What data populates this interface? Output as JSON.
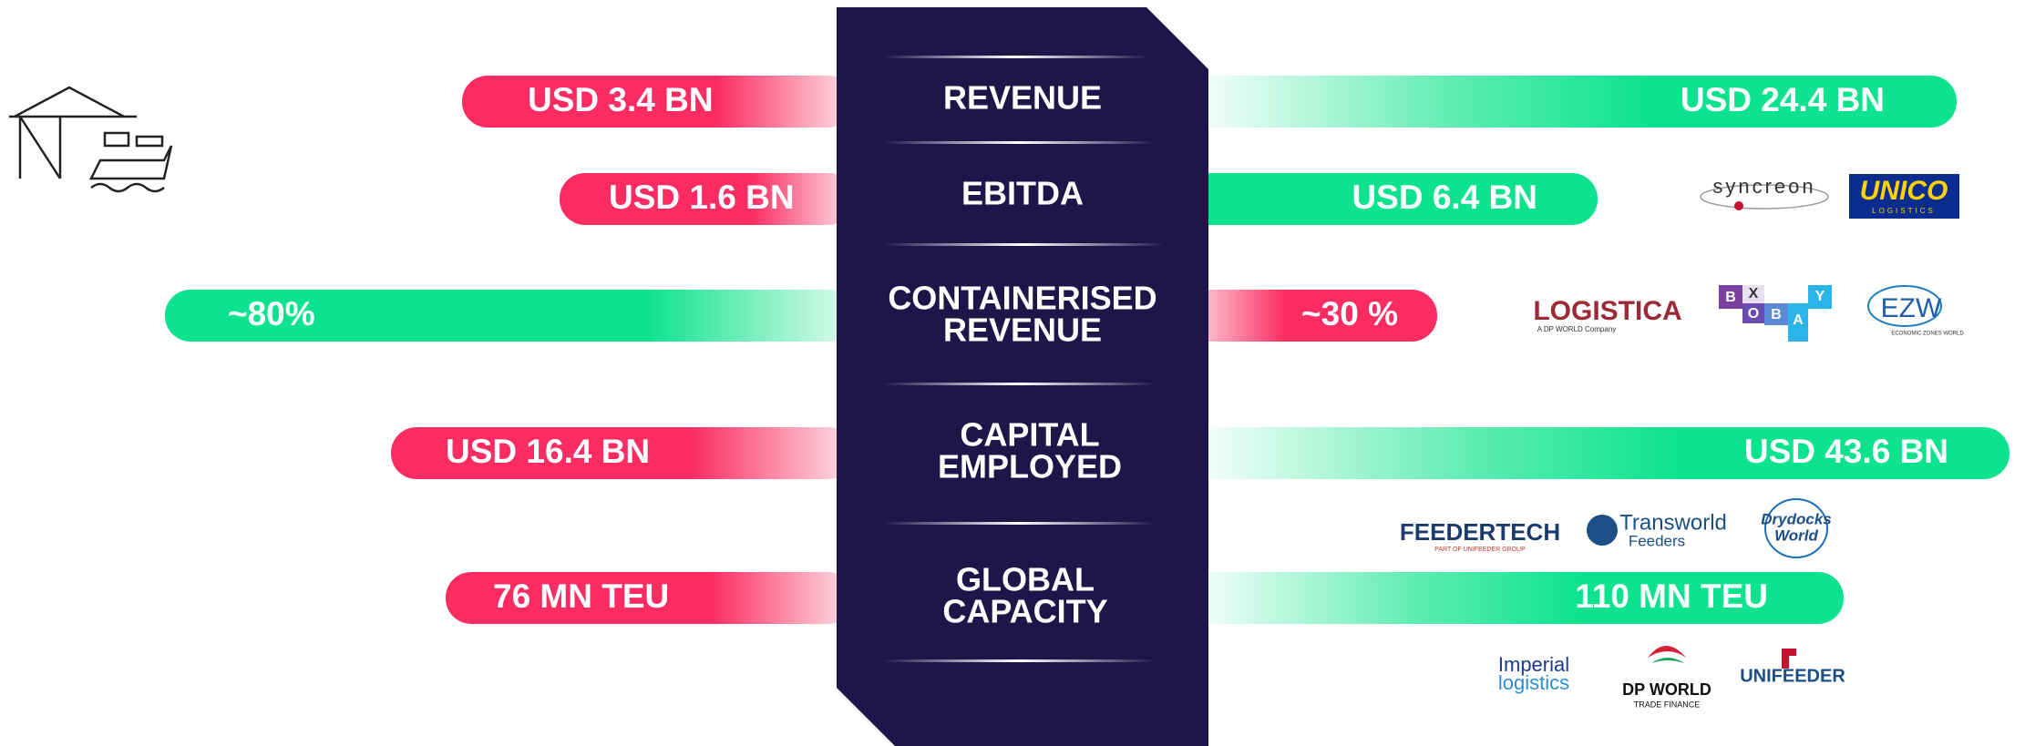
{
  "rows": [
    {
      "label": [
        "REVENUE"
      ],
      "left": "USD 3.4 BN",
      "right": "USD 24.4 BN"
    },
    {
      "label": [
        "EBITDA"
      ],
      "left": "USD 1.6 BN",
      "right": "USD 6.4  BN"
    },
    {
      "label": [
        "CONTAINERISED",
        "REVENUE"
      ],
      "left": "~80%",
      "right": "~30 %"
    },
    {
      "label": [
        "CAPITAL",
        "EMPLOYED"
      ],
      "left": "USD 16.4 BN",
      "right": "USD 43.6 BN"
    },
    {
      "label": [
        "GLOBAL",
        "CAPACITY"
      ],
      "left": "76 MN TEU",
      "right": "110 MN TEU"
    }
  ],
  "logos": {
    "syncreon": "syncreon",
    "unico": "UNICO",
    "unico_sub": "LOGISTICS",
    "logistica": "LOGISTICA",
    "logistica_sub": "A DP WORLD Company",
    "boxbay": [
      "B",
      "O",
      "X",
      "B",
      "A",
      "Y"
    ],
    "ezw": "EZW",
    "ezw_sub": "ECONOMIC ZONES WORLD",
    "feedertech": "FEEDERTECH",
    "feedertech_sub": "PART OF UNIFEEDER GROUP",
    "transworld": "Transworld",
    "transworld_sub": "Feeders",
    "drydocks": [
      "Drydocks",
      "World"
    ],
    "imperial": [
      "Imperial",
      "logistics"
    ],
    "dpworld": "DP WORLD",
    "dpworld_sub": "TRADE FINANCE",
    "unifeeder": "UNIFEEDER"
  }
}
